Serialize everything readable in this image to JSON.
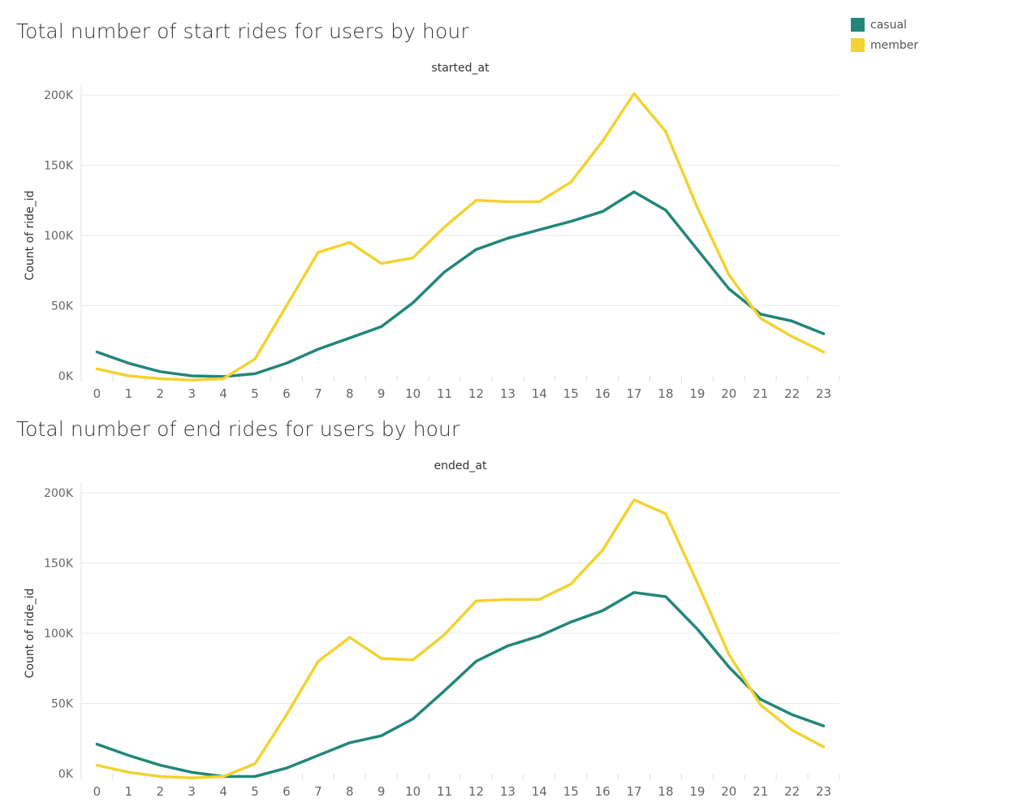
{
  "legend": [
    {
      "name": "casual",
      "color": "#23867a"
    },
    {
      "name": "member",
      "color": "#f2d330"
    }
  ],
  "chart_data": [
    {
      "type": "line",
      "title": "Total number of start rides for users by hour",
      "column_header": "started_at",
      "xlabel": "",
      "ylabel": "Count of ride_id",
      "x": [
        0,
        1,
        2,
        3,
        4,
        5,
        6,
        7,
        8,
        9,
        10,
        11,
        12,
        13,
        14,
        15,
        16,
        17,
        18,
        19,
        20,
        21,
        22,
        23
      ],
      "yticks": [
        "0K",
        "50K",
        "100K",
        "150K",
        "200K"
      ],
      "ylim": [
        0,
        200000
      ],
      "grid": true,
      "series": [
        {
          "name": "casual",
          "color": "#23867a",
          "values": [
            17000,
            9000,
            3000,
            0,
            -500,
            1500,
            9000,
            19000,
            27000,
            35000,
            52000,
            74000,
            90000,
            98000,
            104000,
            110000,
            117000,
            131000,
            118000,
            90000,
            62000,
            44000,
            39000,
            30000
          ]
        },
        {
          "name": "member",
          "color": "#f2d330",
          "values": [
            5000,
            0,
            -2000,
            -3000,
            -2000,
            12000,
            50000,
            88000,
            95000,
            80000,
            84000,
            106000,
            125000,
            124000,
            124000,
            138000,
            167000,
            201000,
            174000,
            120000,
            72000,
            41000,
            28000,
            17000
          ]
        }
      ]
    },
    {
      "type": "line",
      "title": "Total number of end rides for users by hour",
      "column_header": "ended_at",
      "xlabel": "",
      "ylabel": "Count of ride_id",
      "x": [
        0,
        1,
        2,
        3,
        4,
        5,
        6,
        7,
        8,
        9,
        10,
        11,
        12,
        13,
        14,
        15,
        16,
        17,
        18,
        19,
        20,
        21,
        22,
        23
      ],
      "yticks": [
        "0K",
        "50K",
        "100K",
        "150K",
        "200K"
      ],
      "ylim": [
        0,
        200000
      ],
      "grid": true,
      "series": [
        {
          "name": "casual",
          "color": "#23867a",
          "values": [
            21000,
            13000,
            6000,
            1000,
            -2000,
            -2000,
            4000,
            13000,
            22000,
            27000,
            39000,
            59000,
            80000,
            91000,
            98000,
            108000,
            116000,
            129000,
            126000,
            103000,
            76000,
            53000,
            42000,
            34000
          ]
        },
        {
          "name": "member",
          "color": "#f2d330",
          "values": [
            6000,
            1000,
            -2000,
            -3000,
            -2000,
            7000,
            42000,
            80000,
            97000,
            82000,
            81000,
            99000,
            123000,
            124000,
            124000,
            135000,
            159000,
            195000,
            185000,
            136000,
            85000,
            49000,
            31000,
            19000
          ]
        }
      ]
    }
  ]
}
